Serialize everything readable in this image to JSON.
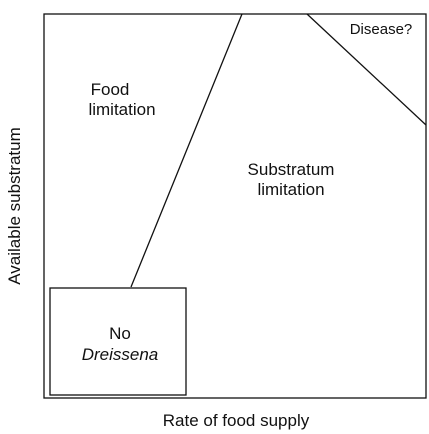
{
  "axes": {
    "x_label": "Rate of food supply",
    "y_label": "Available substratum"
  },
  "regions": [
    {
      "lines": [
        "Food",
        "limitation"
      ]
    },
    {
      "lines": [
        "Substratum",
        "limitation"
      ]
    },
    {
      "lines": [
        "Disease?"
      ]
    },
    {
      "lines": [
        "No",
        "Dreissena"
      ]
    }
  ]
}
